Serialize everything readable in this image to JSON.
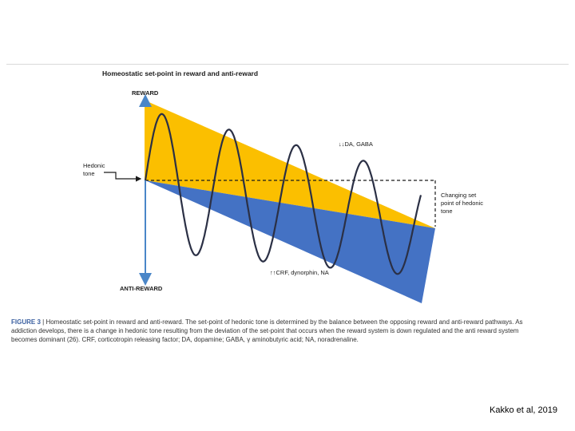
{
  "figure": {
    "title": "Homeostatic set-point in reward and anti-reward",
    "axis_top": "REWARD",
    "axis_bottom": "ANTI-REWARD",
    "hedonic_tone": [
      "Hedonic",
      "tone"
    ],
    "reward_annotation": "↓↓DA, GABA",
    "antireward_annotation": "↑↑CRF, dynorphin, NA",
    "setpoint_annotation": [
      "Changing set",
      "point of hedonic",
      "tone"
    ],
    "colors": {
      "reward": "#fbbf00",
      "antireward": "#4472c4",
      "wave": "#2b3045",
      "arrow": "#4a86c8"
    }
  },
  "caption": {
    "label": "FIGURE 3",
    "separator": " | ",
    "text": "Homeostatic set-point in reward and anti-reward. The set-point of hedonic tone is determined by the balance between the opposing reward and anti-reward pathways. As addiction develops, there is a change in hedonic tone resulting from the deviation of the set-point that occurs when the reward system is down regulated and the anti reward system becomes dominant (26). CRF, corticotropin releasing factor; DA, dopamine; GABA, γ aminobutyric acid; NA, noradrenaline."
  },
  "citation": "Kakko et al, 2019"
}
